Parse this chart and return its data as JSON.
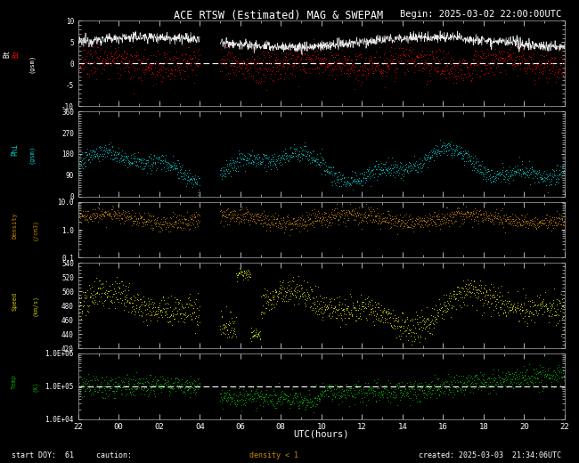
{
  "title": "ACE RTSW (Estimated) MAG & SWEPAM",
  "begin_label": "Begin: 2025-03-02 22:00:00UTC",
  "footer_left": "start DOY:  61     caution:",
  "footer_density": "density < 1",
  "footer_right": "created: 2025-03-03  21:34:06UTC",
  "xlabel": "UTC(hours)",
  "xtick_labels": [
    "22",
    "00",
    "02",
    "04",
    "06",
    "08",
    "10",
    "12",
    "14",
    "16",
    "18",
    "20",
    "22"
  ],
  "xtick_positions": [
    0,
    2,
    4,
    6,
    8,
    10,
    12,
    14,
    16,
    18,
    20,
    22,
    24
  ],
  "background_color": "#000000",
  "text_color": "#ffffff",
  "panel1": {
    "ylabel_bt": "Bt",
    "ylabel_bz": "Bz",
    "ylabel_unit": "(gsm)",
    "ylim": [
      -10,
      10
    ],
    "yticks": [
      -10,
      -5,
      0,
      5,
      10
    ],
    "bt_color": "#ffffff",
    "bz_color": "#ff0000"
  },
  "panel2": {
    "ylabel": "Phi",
    "ylabel_unit": "(gsm)",
    "ylim": [
      0,
      360
    ],
    "yticks": [
      0,
      90,
      180,
      270,
      360
    ],
    "color": "#00cccc"
  },
  "panel3": {
    "ylabel": "Density",
    "ylabel_unit": "(/cm3)",
    "ylim_log": [
      0.1,
      10.0
    ],
    "yticks_log": [
      0.1,
      1.0,
      10.0
    ],
    "ytick_labels": [
      "0.1",
      "1.0",
      "10.0"
    ],
    "color": "#cc8800"
  },
  "panel4": {
    "ylabel": "Speed",
    "ylabel_unit": "(km/s)",
    "ylim": [
      420,
      540
    ],
    "yticks": [
      420,
      440,
      460,
      480,
      500,
      520,
      540
    ],
    "color": "#cccc00"
  },
  "panel5": {
    "ylabel": "Temp",
    "ylabel_unit": "(K)",
    "ylim_log": [
      10000,
      1000000
    ],
    "yticks_log": [
      10000,
      100000,
      1000000
    ],
    "ytick_labels": [
      "1.0E+04",
      "1.0E+05",
      "1.0E+06"
    ],
    "color": "#00aa00",
    "dashed_ref": 100000
  }
}
